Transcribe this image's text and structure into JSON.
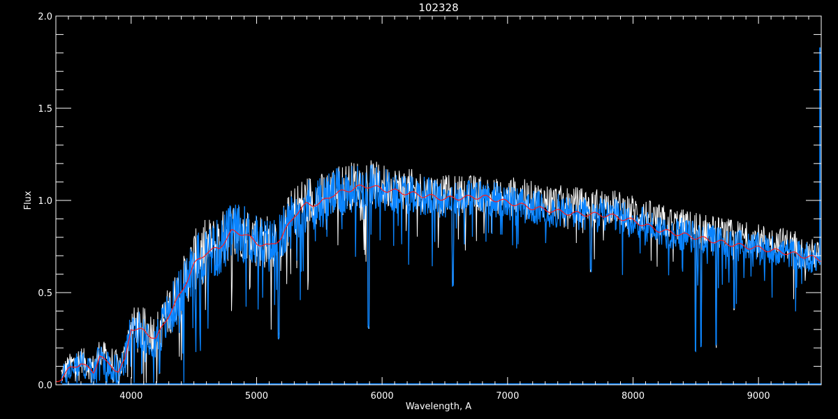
{
  "chart_data": {
    "type": "line",
    "title": "102328",
    "xlabel": "Wavelength, A",
    "ylabel": "Flux",
    "xlim": [
      3400,
      9500
    ],
    "ylim": [
      0,
      2.0
    ],
    "x_ticks": [
      4000,
      5000,
      6000,
      7000,
      8000,
      9000
    ],
    "x_tick_labels": [
      "4000",
      "5000",
      "6000",
      "7000",
      "8000",
      "9000"
    ],
    "x_minor_step": 100,
    "y_ticks": [
      0.0,
      0.5,
      1.0,
      1.5,
      2.0
    ],
    "y_tick_labels": [
      "0.0",
      "0.5",
      "1.0",
      "1.5",
      "2.0"
    ],
    "y_minor_step": 0.1,
    "grid": false,
    "colors": {
      "background": "#000000",
      "axes": "#ffffff",
      "spectrum_white": "#ffffff",
      "spectrum_blue": "#0a84ff",
      "smoothed": "#ff1a1a"
    },
    "series": [
      {
        "role": "smoothed",
        "color": "#ff1a1a",
        "x": [
          3400,
          3450,
          3500,
          3550,
          3600,
          3650,
          3700,
          3750,
          3800,
          3850,
          3900,
          3950,
          4000,
          4100,
          4200,
          4300,
          4400,
          4500,
          4600,
          4700,
          4800,
          4900,
          5000,
          5100,
          5200,
          5300,
          5400,
          5500,
          5600,
          5700,
          5800,
          5900,
          6000,
          6200,
          6500,
          6800,
          7000,
          7200,
          7500,
          7800,
          8000,
          8200,
          8500,
          8800,
          9000,
          9200,
          9500
        ],
        "y": [
          0.02,
          0.04,
          0.08,
          0.1,
          0.12,
          0.09,
          0.07,
          0.16,
          0.12,
          0.1,
          0.07,
          0.13,
          0.31,
          0.29,
          0.25,
          0.38,
          0.5,
          0.65,
          0.72,
          0.74,
          0.83,
          0.82,
          0.77,
          0.75,
          0.8,
          0.92,
          0.98,
          0.98,
          1.03,
          1.05,
          1.07,
          1.08,
          1.06,
          1.04,
          1.01,
          1.02,
          0.99,
          0.96,
          0.93,
          0.92,
          0.89,
          0.84,
          0.8,
          0.76,
          0.74,
          0.72,
          0.68
        ]
      },
      {
        "role": "spectrum-blue",
        "color": "#0a84ff",
        "scatter_amplitude": {
          "x": [
            3400,
            4000,
            4500,
            5500,
            6000,
            7000,
            8000,
            9000,
            9500
          ],
          "y": [
            0.05,
            0.08,
            0.14,
            0.12,
            0.1,
            0.08,
            0.08,
            0.07,
            0.07
          ]
        },
        "absorption_lines": [
          {
            "x": 4226,
            "depth_to": 0.05
          },
          {
            "x": 5175,
            "depth_to": 0.25
          },
          {
            "x": 5892,
            "depth_to": 0.3
          },
          {
            "x": 6563,
            "depth_to": 0.53
          },
          {
            "x": 7665,
            "depth_to": 0.6
          },
          {
            "x": 8498,
            "depth_to": 0.18
          },
          {
            "x": 8542,
            "depth_to": 0.2
          },
          {
            "x": 8662,
            "depth_to": 0.2
          },
          {
            "x": 8806,
            "depth_to": 0.4
          }
        ],
        "edge_spike": {
          "x": 9490,
          "y": 1.83
        }
      },
      {
        "role": "spectrum-white",
        "color": "#ffffff"
      }
    ]
  }
}
